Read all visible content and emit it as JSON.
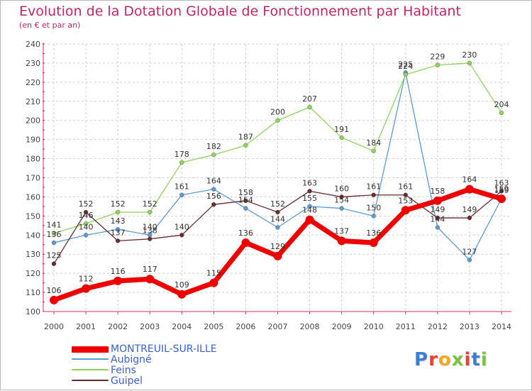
{
  "title": "Evolution de la Dotation Globale de Fonctionnement par Habitant",
  "subtitle": "(en € et par an)",
  "logo_text": "Proxiti",
  "logo_colors": [
    "#3b7dd8",
    "#e8423a",
    "#f5a623",
    "#7cc242",
    "#e8423a",
    "#3b7dd8",
    "#7cc242"
  ],
  "chart_data": {
    "type": "line",
    "title": "Evolution de la Dotation Globale de Fonctionnement par Habitant",
    "subtitle": "(en € et par an)",
    "xlabel": "",
    "ylabel": "",
    "ylim": [
      100,
      240
    ],
    "yticks": [
      100,
      110,
      120,
      130,
      140,
      150,
      160,
      170,
      180,
      190,
      200,
      210,
      220,
      230,
      240
    ],
    "grid": true,
    "legend_position": "bottom-left",
    "categories": [
      "2000",
      "2001",
      "2002",
      "2003",
      "2004",
      "2005",
      "2006",
      "2007",
      "2008",
      "2009",
      "2010",
      "2011",
      "2012",
      "2013",
      "2014"
    ],
    "series": [
      {
        "name": "Aubigné",
        "color": "#5b9bd5",
        "values": [
          136,
          140,
          143,
          140,
          161,
          164,
          154,
          144,
          155,
          154,
          150,
          225,
          144,
          127,
          159
        ],
        "labels": [
          "136",
          "140",
          "143",
          "140",
          "161",
          "164",
          "154",
          "144",
          "155",
          "154",
          "150",
          "225",
          "144",
          "127",
          "159"
        ]
      },
      {
        "name": "Feins",
        "color": "#8fd45a",
        "values": [
          141,
          146,
          152,
          152,
          178,
          182,
          187,
          200,
          207,
          191,
          184,
          224,
          229,
          230,
          204
        ],
        "labels": [
          "141",
          "146",
          "152",
          "152",
          "178",
          "182",
          "187",
          "200",
          "207",
          "191",
          "184",
          "224",
          "229",
          "230",
          "204"
        ]
      },
      {
        "name": "Guipel",
        "color": "#6b2a30",
        "values": [
          125,
          152,
          137,
          138,
          140,
          156,
          158,
          152,
          163,
          160,
          161,
          161,
          149,
          149,
          163
        ],
        "labels": [
          "125",
          "152",
          "137",
          "138",
          "140",
          "156",
          "158",
          "152",
          "163",
          "160",
          "161",
          "161",
          "149",
          "149",
          "163"
        ]
      },
      {
        "name": "MONTREUIL-SUR-ILLE",
        "color": "#ee0000",
        "values": [
          106,
          112,
          116,
          117,
          109,
          115,
          136,
          129,
          148,
          137,
          136,
          153,
          158,
          164,
          159
        ],
        "labels": [
          "106",
          "112",
          "116",
          "117",
          "109",
          "115",
          "136",
          "129",
          "148",
          "137",
          "136",
          "153",
          "158",
          "164",
          "159"
        ]
      }
    ],
    "legend": [
      "MONTREUIL-SUR-ILLE",
      "Aubigné",
      "Feins",
      "Guipel"
    ]
  }
}
